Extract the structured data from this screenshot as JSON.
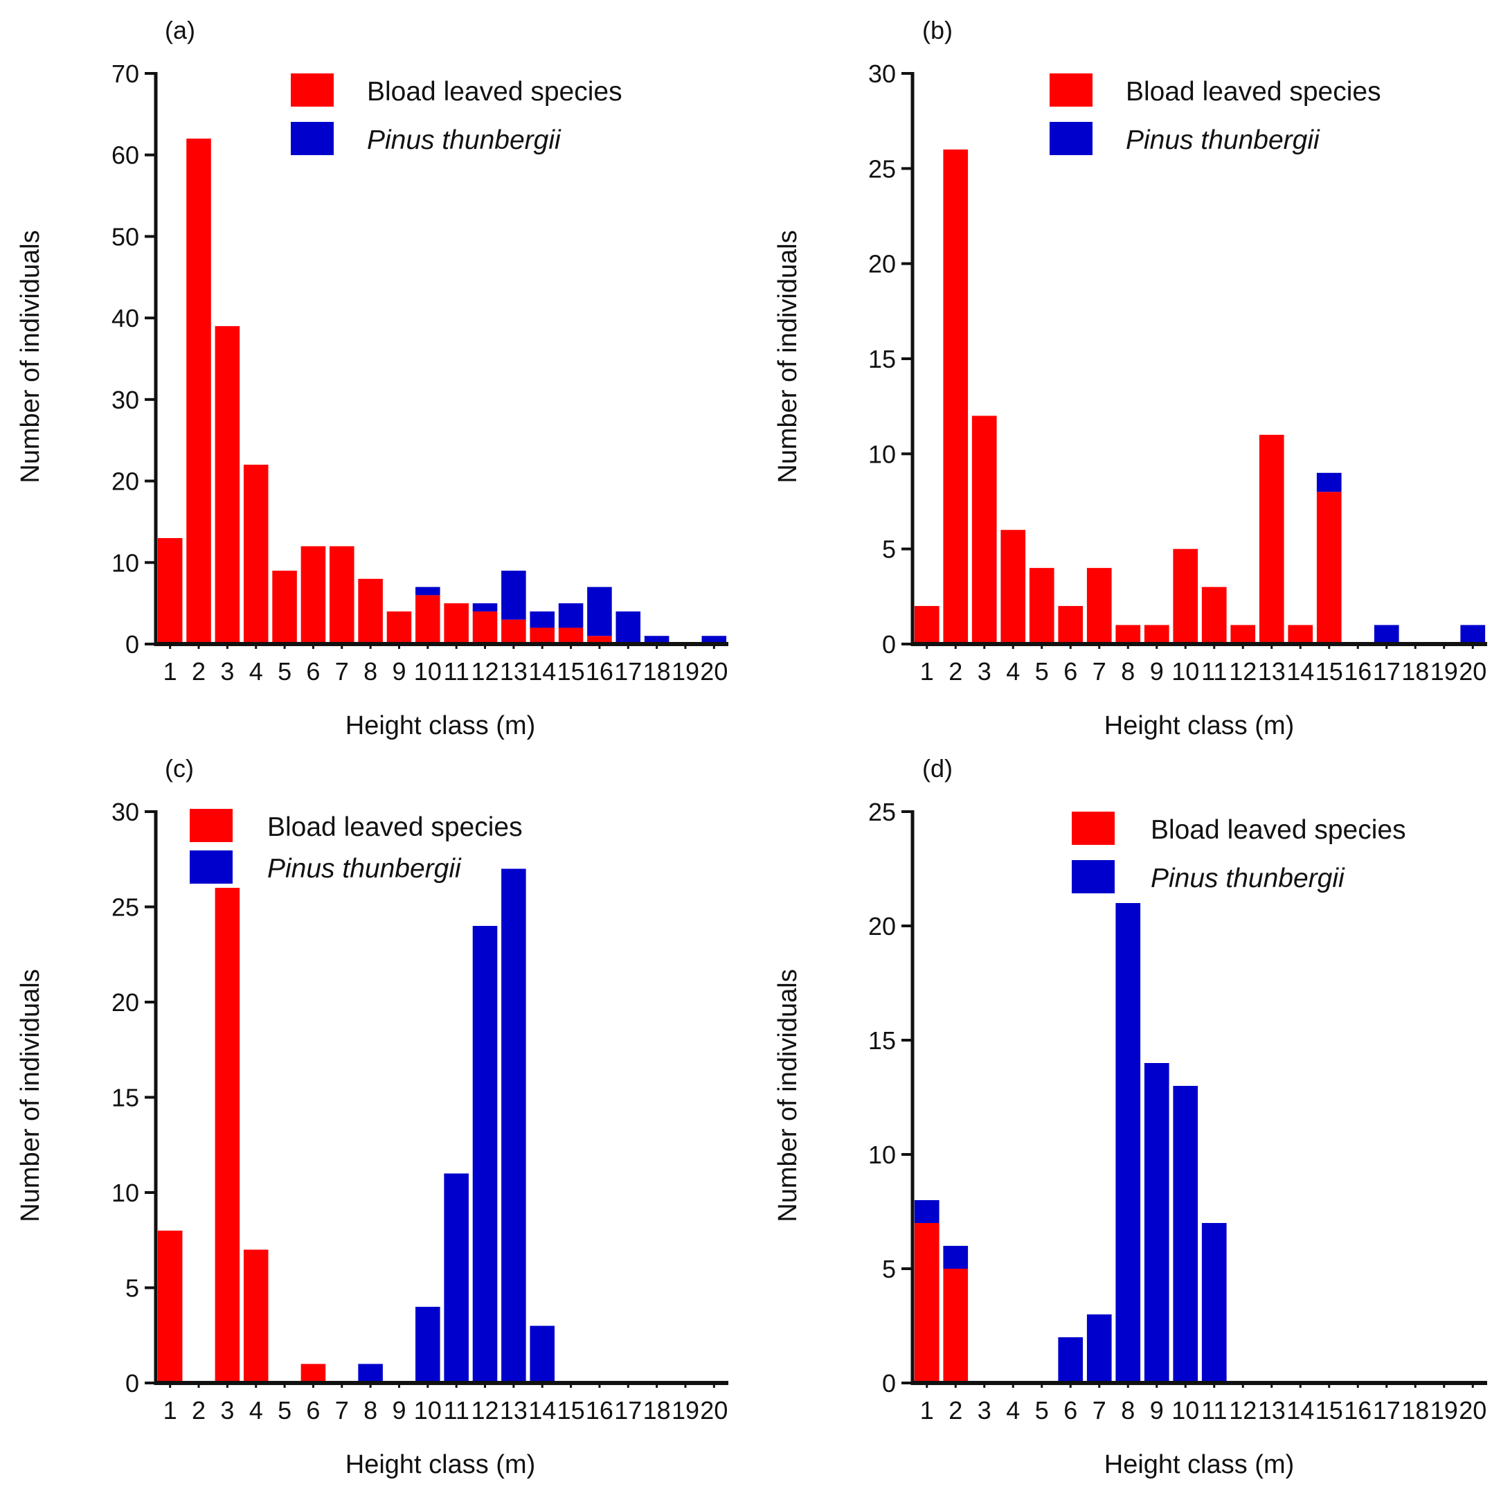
{
  "figure": {
    "colors": {
      "broad": "#ff0000",
      "pine": "#0000cc",
      "axis": "#111111"
    }
  },
  "chart_data": [
    {
      "type": "bar",
      "stacked": true,
      "panel_label": "(a)",
      "title": "",
      "xlabel": "Height class (m)",
      "ylabel": "Number of individuals",
      "ylim": [
        0,
        70
      ],
      "yticks": [
        0,
        10,
        20,
        30,
        40,
        50,
        60,
        70
      ],
      "categories": [
        "1",
        "2",
        "3",
        "4",
        "5",
        "6",
        "7",
        "8",
        "9",
        "10",
        "11",
        "12",
        "13",
        "14",
        "15",
        "16",
        "17",
        "18",
        "19",
        "20"
      ],
      "legend_position": "top-center",
      "series": [
        {
          "name": "Bload leaved species",
          "italic": false,
          "color": "#ff0000",
          "values": [
            13,
            62,
            39,
            22,
            9,
            12,
            12,
            8,
            4,
            6,
            5,
            4,
            3,
            2,
            2,
            1,
            0,
            0,
            0,
            0
          ]
        },
        {
          "name": "Pinus thunbergii",
          "italic": true,
          "color": "#0000cc",
          "values": [
            0,
            0,
            0,
            0,
            0,
            0,
            0,
            0,
            0,
            1,
            0,
            1,
            6,
            2,
            3,
            6,
            4,
            1,
            0,
            1
          ]
        }
      ]
    },
    {
      "type": "bar",
      "stacked": true,
      "panel_label": "(b)",
      "title": "",
      "xlabel": "Height class (m)",
      "ylabel": "Number of individuals",
      "ylim": [
        0,
        30
      ],
      "yticks": [
        0,
        5,
        10,
        15,
        20,
        25,
        30
      ],
      "categories": [
        "1",
        "2",
        "3",
        "4",
        "5",
        "6",
        "7",
        "8",
        "9",
        "10",
        "11",
        "12",
        "13",
        "14",
        "15",
        "16",
        "17",
        "18",
        "19",
        "20"
      ],
      "legend_position": "top-center",
      "series": [
        {
          "name": "Bload leaved species",
          "italic": false,
          "color": "#ff0000",
          "values": [
            2,
            26,
            12,
            6,
            4,
            2,
            4,
            1,
            1,
            5,
            3,
            1,
            11,
            1,
            8,
            0,
            0,
            0,
            0,
            0
          ]
        },
        {
          "name": "Pinus thunbergii",
          "italic": true,
          "color": "#0000cc",
          "values": [
            0,
            0,
            0,
            0,
            0,
            0,
            0,
            0,
            0,
            0,
            0,
            0,
            0,
            0,
            1,
            0,
            1,
            0,
            0,
            1
          ]
        }
      ]
    },
    {
      "type": "bar",
      "stacked": true,
      "panel_label": "(c)",
      "title": "",
      "xlabel": "Height class (m)",
      "ylabel": "Number of individuals",
      "ylim": [
        0,
        30
      ],
      "yticks": [
        0,
        5,
        10,
        15,
        20,
        25,
        30
      ],
      "categories": [
        "1",
        "2",
        "3",
        "4",
        "5",
        "6",
        "7",
        "8",
        "9",
        "10",
        "11",
        "12",
        "13",
        "14",
        "15",
        "16",
        "17",
        "18",
        "19",
        "20"
      ],
      "legend_position": "top-left",
      "series": [
        {
          "name": "Bload leaved species",
          "italic": false,
          "color": "#ff0000",
          "values": [
            8,
            0,
            26,
            7,
            0,
            1,
            0,
            0,
            0,
            0,
            0,
            0,
            0,
            0,
            0,
            0,
            0,
            0,
            0,
            0
          ]
        },
        {
          "name": "Pinus thunbergii",
          "italic": true,
          "color": "#0000cc",
          "values": [
            0,
            0,
            0,
            0,
            0,
            0,
            0,
            1,
            0,
            4,
            11,
            24,
            27,
            3,
            0,
            0,
            0,
            0,
            0,
            0
          ]
        }
      ]
    },
    {
      "type": "bar",
      "stacked": true,
      "panel_label": "(d)",
      "title": "",
      "xlabel": "Height class (m)",
      "ylabel": "Number of individuals",
      "ylim": [
        0,
        25
      ],
      "yticks": [
        0,
        5,
        10,
        15,
        20,
        25
      ],
      "categories": [
        "1",
        "2",
        "3",
        "4",
        "5",
        "6",
        "7",
        "8",
        "9",
        "10",
        "11",
        "12",
        "13",
        "14",
        "15",
        "16",
        "17",
        "18",
        "19",
        "20"
      ],
      "legend_position": "top-center",
      "series": [
        {
          "name": "Bload leaved species",
          "italic": false,
          "color": "#ff0000",
          "values": [
            7,
            5,
            0,
            0,
            0,
            0,
            0,
            0,
            0,
            0,
            0,
            0,
            0,
            0,
            0,
            0,
            0,
            0,
            0,
            0
          ]
        },
        {
          "name": "Pinus thunbergii",
          "italic": true,
          "color": "#0000cc",
          "values": [
            1,
            1,
            0,
            0,
            0,
            2,
            3,
            21,
            14,
            13,
            7,
            0,
            0,
            0,
            0,
            0,
            0,
            0,
            0,
            0
          ]
        }
      ]
    }
  ]
}
